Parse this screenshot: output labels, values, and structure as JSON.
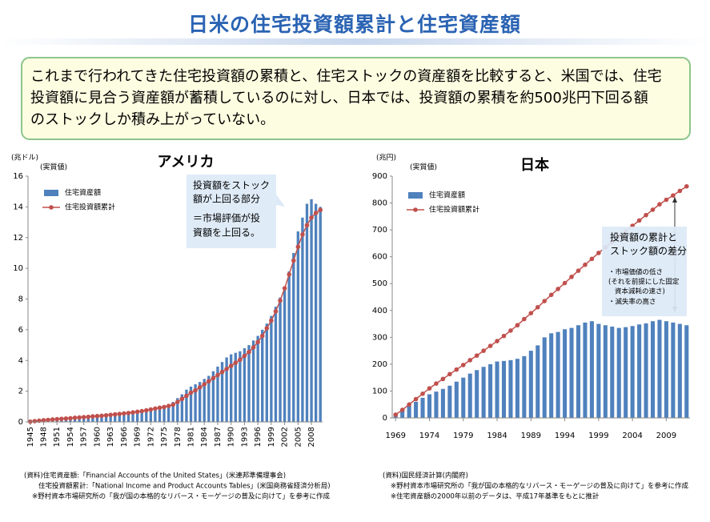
{
  "header": {
    "title": "日米の住宅投資額累計と住宅資産額"
  },
  "summary": {
    "lines": [
      "これまで行われてきた住宅投資額の累積と、住宅ストックの資産額を比較すると、米国では、住宅",
      "投資額に見合う資産額が蓄積しているのに対し、日本では、投資額の累積を約500兆円下回る額",
      "のストックしか積み上がっていない。"
    ]
  },
  "chart_data": [
    {
      "type": "bar_line",
      "title": "アメリカ",
      "y_unit_label": "(兆ドル)",
      "note": "(実質値)",
      "x": [
        1945,
        1946,
        1947,
        1948,
        1949,
        1950,
        1951,
        1952,
        1953,
        1954,
        1955,
        1956,
        1957,
        1958,
        1959,
        1960,
        1961,
        1962,
        1963,
        1964,
        1965,
        1966,
        1967,
        1968,
        1969,
        1970,
        1971,
        1972,
        1973,
        1974,
        1975,
        1976,
        1977,
        1978,
        1979,
        1980,
        1981,
        1982,
        1983,
        1984,
        1985,
        1986,
        1987,
        1988,
        1989,
        1990,
        1991,
        1992,
        1993,
        1994,
        1995,
        1996,
        1997,
        1998,
        1999,
        2000,
        2001,
        2002,
        2003,
        2004,
        2005,
        2006,
        2007,
        2008,
        2009,
        2010
      ],
      "xlim": [
        1944.5,
        2010.5
      ],
      "xticks": [
        1945,
        1948,
        1951,
        1954,
        1957,
        1960,
        1963,
        1966,
        1969,
        1972,
        1975,
        1978,
        1981,
        1984,
        1987,
        1990,
        1993,
        1996,
        1999,
        2002,
        2005,
        2008
      ],
      "ylim": [
        0,
        16
      ],
      "yticks": [
        0,
        2,
        4,
        6,
        8,
        10,
        12,
        14,
        16
      ],
      "legend": "upper left",
      "series": [
        {
          "name": "住宅資産額",
          "color": "#4f81bd",
          "mark": "bar",
          "values": [
            0.03,
            0.05,
            0.07,
            0.09,
            0.11,
            0.13,
            0.15,
            0.17,
            0.19,
            0.21,
            0.24,
            0.27,
            0.29,
            0.31,
            0.34,
            0.37,
            0.4,
            0.43,
            0.46,
            0.49,
            0.52,
            0.55,
            0.58,
            0.62,
            0.66,
            0.7,
            0.76,
            0.82,
            0.9,
            0.98,
            1.05,
            1.15,
            1.3,
            1.55,
            1.8,
            2.1,
            2.3,
            2.45,
            2.6,
            2.8,
            3.0,
            3.3,
            3.6,
            3.9,
            4.2,
            4.4,
            4.5,
            4.6,
            4.8,
            5.0,
            5.3,
            5.6,
            6.0,
            6.4,
            6.9,
            7.5,
            8.1,
            8.8,
            9.8,
            11.0,
            12.4,
            13.3,
            14.2,
            14.5,
            14.2,
            14.0
          ]
        },
        {
          "name": "住宅投資額累計",
          "color": "#c0504d",
          "mark": "line",
          "values": [
            0.02,
            0.05,
            0.08,
            0.11,
            0.13,
            0.16,
            0.18,
            0.2,
            0.22,
            0.24,
            0.27,
            0.29,
            0.31,
            0.33,
            0.36,
            0.38,
            0.4,
            0.43,
            0.46,
            0.49,
            0.52,
            0.55,
            0.58,
            0.62,
            0.66,
            0.7,
            0.75,
            0.81,
            0.87,
            0.92,
            0.97,
            1.04,
            1.12,
            1.3,
            1.5,
            1.7,
            1.9,
            2.05,
            2.25,
            2.45,
            2.65,
            2.85,
            3.05,
            3.25,
            3.45,
            3.65,
            3.85,
            4.05,
            4.3,
            4.55,
            4.85,
            5.2,
            5.6,
            6.1,
            6.6,
            7.2,
            7.9,
            8.7,
            9.6,
            10.5,
            11.4,
            12.2,
            12.8,
            13.3,
            13.6,
            13.8
          ]
        }
      ],
      "annotations": [
        {
          "lines": [
            "投資額をストック",
            "額が上回る部分",
            "＝市場評価が投",
            "資額を上回る。"
          ]
        }
      ]
    },
    {
      "type": "bar_line",
      "title": "日本",
      "y_unit_label": "(兆円)",
      "note": "(実質値)",
      "x": [
        1969,
        1970,
        1971,
        1972,
        1973,
        1974,
        1975,
        1976,
        1977,
        1978,
        1979,
        1980,
        1981,
        1982,
        1983,
        1984,
        1985,
        1986,
        1987,
        1988,
        1989,
        1990,
        1991,
        1992,
        1993,
        1994,
        1995,
        1996,
        1997,
        1998,
        1999,
        2000,
        2001,
        2002,
        2003,
        2004,
        2005,
        2006,
        2007,
        2008,
        2009,
        2010,
        2011,
        2012
      ],
      "xlim": [
        1968.5,
        2012.5
      ],
      "xticks": [
        1969,
        1974,
        1979,
        1984,
        1989,
        1994,
        1999,
        2004,
        2009
      ],
      "ylim": [
        0,
        900
      ],
      "yticks": [
        0,
        100,
        200,
        300,
        400,
        500,
        600,
        700,
        800,
        900
      ],
      "legend": "upper left",
      "series": [
        {
          "name": "住宅資産額",
          "color": "#4f81bd",
          "mark": "bar",
          "values": [
            15,
            30,
            45,
            60,
            75,
            88,
            98,
            108,
            120,
            135,
            150,
            165,
            178,
            190,
            200,
            210,
            212,
            215,
            220,
            230,
            250,
            270,
            300,
            315,
            320,
            330,
            335,
            345,
            355,
            360,
            350,
            345,
            340,
            335,
            338,
            342,
            348,
            352,
            360,
            365,
            360,
            355,
            350,
            345
          ]
        },
        {
          "name": "住宅投資額累計",
          "color": "#c0504d",
          "mark": "line",
          "values": [
            12,
            30,
            50,
            70,
            90,
            110,
            128,
            145,
            163,
            180,
            197,
            215,
            232,
            250,
            268,
            286,
            305,
            325,
            345,
            368,
            390,
            412,
            435,
            458,
            480,
            502,
            525,
            548,
            570,
            592,
            614,
            635,
            655,
            675,
            695,
            715,
            735,
            755,
            775,
            795,
            812,
            828,
            845,
            862
          ]
        }
      ],
      "annotations": [
        {
          "lines": [
            "投資額の累計と",
            "ストック額の差分",
            "・市場価値の低さ",
            "(それを前提にした固定",
            "資本減耗の速さ)",
            "・滅失率の高さ"
          ]
        }
      ]
    }
  ],
  "footnotes": [
    {
      "lines": [
        "(資料)住宅資産額:「Financial Accounts of the United States」(米連邦準備理事会)",
        "住宅投資額累計:「National Income and Product Accounts Tables」(米国商務省経済分析局)",
        "※野村資本市場研究所の「我が国の本格的なリバース・モーゲージの普及に向けて」を参考に作成"
      ]
    },
    {
      "lines": [
        "(資料)国民経済計算(内閣府)",
        "※野村資本市場研究所の「我が国の本格的なリバース・モーゲージの普及に向けて」を参考に作成",
        "※住宅資産額の2000年以前のデータは、平成17年基準をもとに推計"
      ]
    }
  ]
}
